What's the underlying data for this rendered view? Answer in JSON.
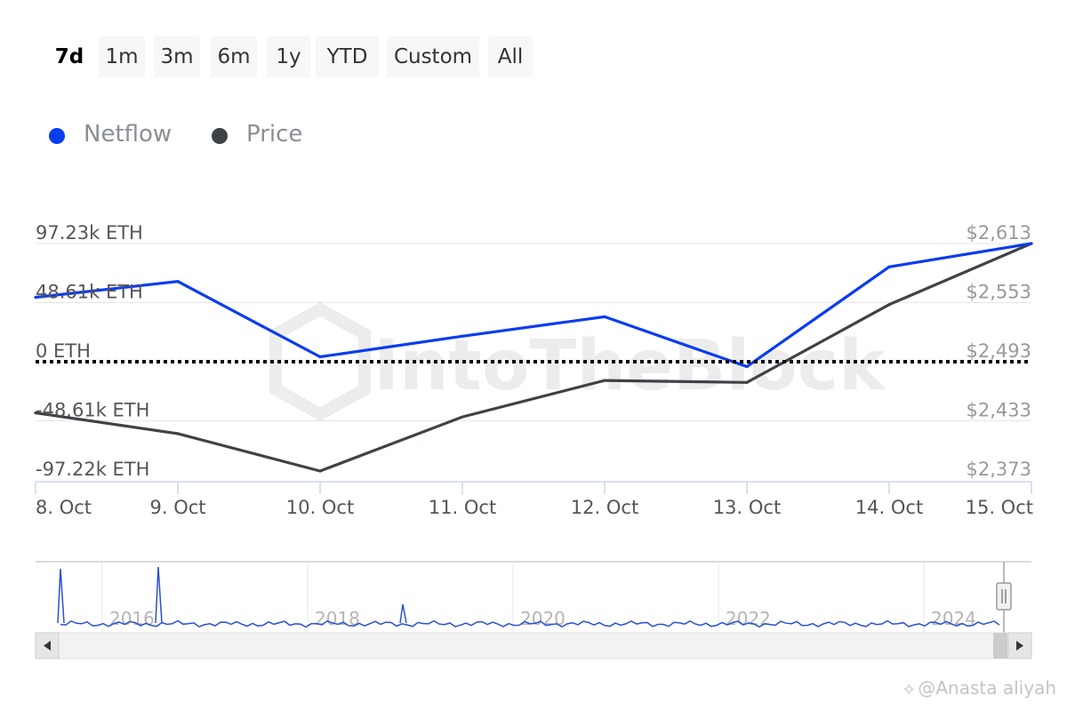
{
  "range_buttons": [
    {
      "label": "7d",
      "active": true
    },
    {
      "label": "1m",
      "active": false
    },
    {
      "label": "3m",
      "active": false
    },
    {
      "label": "6m",
      "active": false
    },
    {
      "label": "1y",
      "active": false
    },
    {
      "label": "YTD",
      "active": false
    },
    {
      "label": "Custom",
      "active": false
    },
    {
      "label": "All",
      "active": false
    }
  ],
  "legend": [
    {
      "label": "Netflow",
      "color": "#0a3cf0"
    },
    {
      "label": "Price",
      "color": "#3f4246"
    }
  ],
  "colors": {
    "netflow": "#0a3cf0",
    "price": "#3f4246",
    "grid": "#e6e6e6",
    "navigator_line": "#2a4fd6"
  },
  "watermark": {
    "text": "@Anasta aliyah"
  },
  "chart_data": {
    "type": "line",
    "x": [
      "8. Oct",
      "9. Oct",
      "10. Oct",
      "11. Oct",
      "12. Oct",
      "13. Oct",
      "14. Oct",
      "15. Oct"
    ],
    "left_axis": {
      "ticks": [
        "97.23k ETH",
        "48.61k ETH",
        "0 ETH",
        "-48.61k ETH",
        "-97.22k ETH"
      ],
      "tick_values": [
        97230,
        48610,
        0,
        -48610,
        -97220
      ],
      "range": [
        -97220,
        97230
      ]
    },
    "right_axis": {
      "ticks": [
        "$2,613",
        "$2,553",
        "$2,493",
        "$2,433",
        "$2,373"
      ],
      "tick_values": [
        2613,
        2553,
        2493,
        2433,
        2373
      ],
      "range": [
        2373,
        2613
      ]
    },
    "series": [
      {
        "name": "Netflow",
        "axis": "left",
        "values": [
          53000,
          66000,
          4000,
          21000,
          37000,
          -4000,
          78000,
          97230
        ]
      },
      {
        "name": "Price",
        "axis": "right",
        "values": [
          2441,
          2420,
          2382,
          2437,
          2474,
          2472,
          2551,
          2613
        ]
      }
    ],
    "zero_line": "dotted",
    "watermark_logo": "IntoTheBlock",
    "navigator": {
      "year_labels": [
        "2016",
        "2018",
        "2020",
        "2022",
        "2024"
      ]
    }
  }
}
